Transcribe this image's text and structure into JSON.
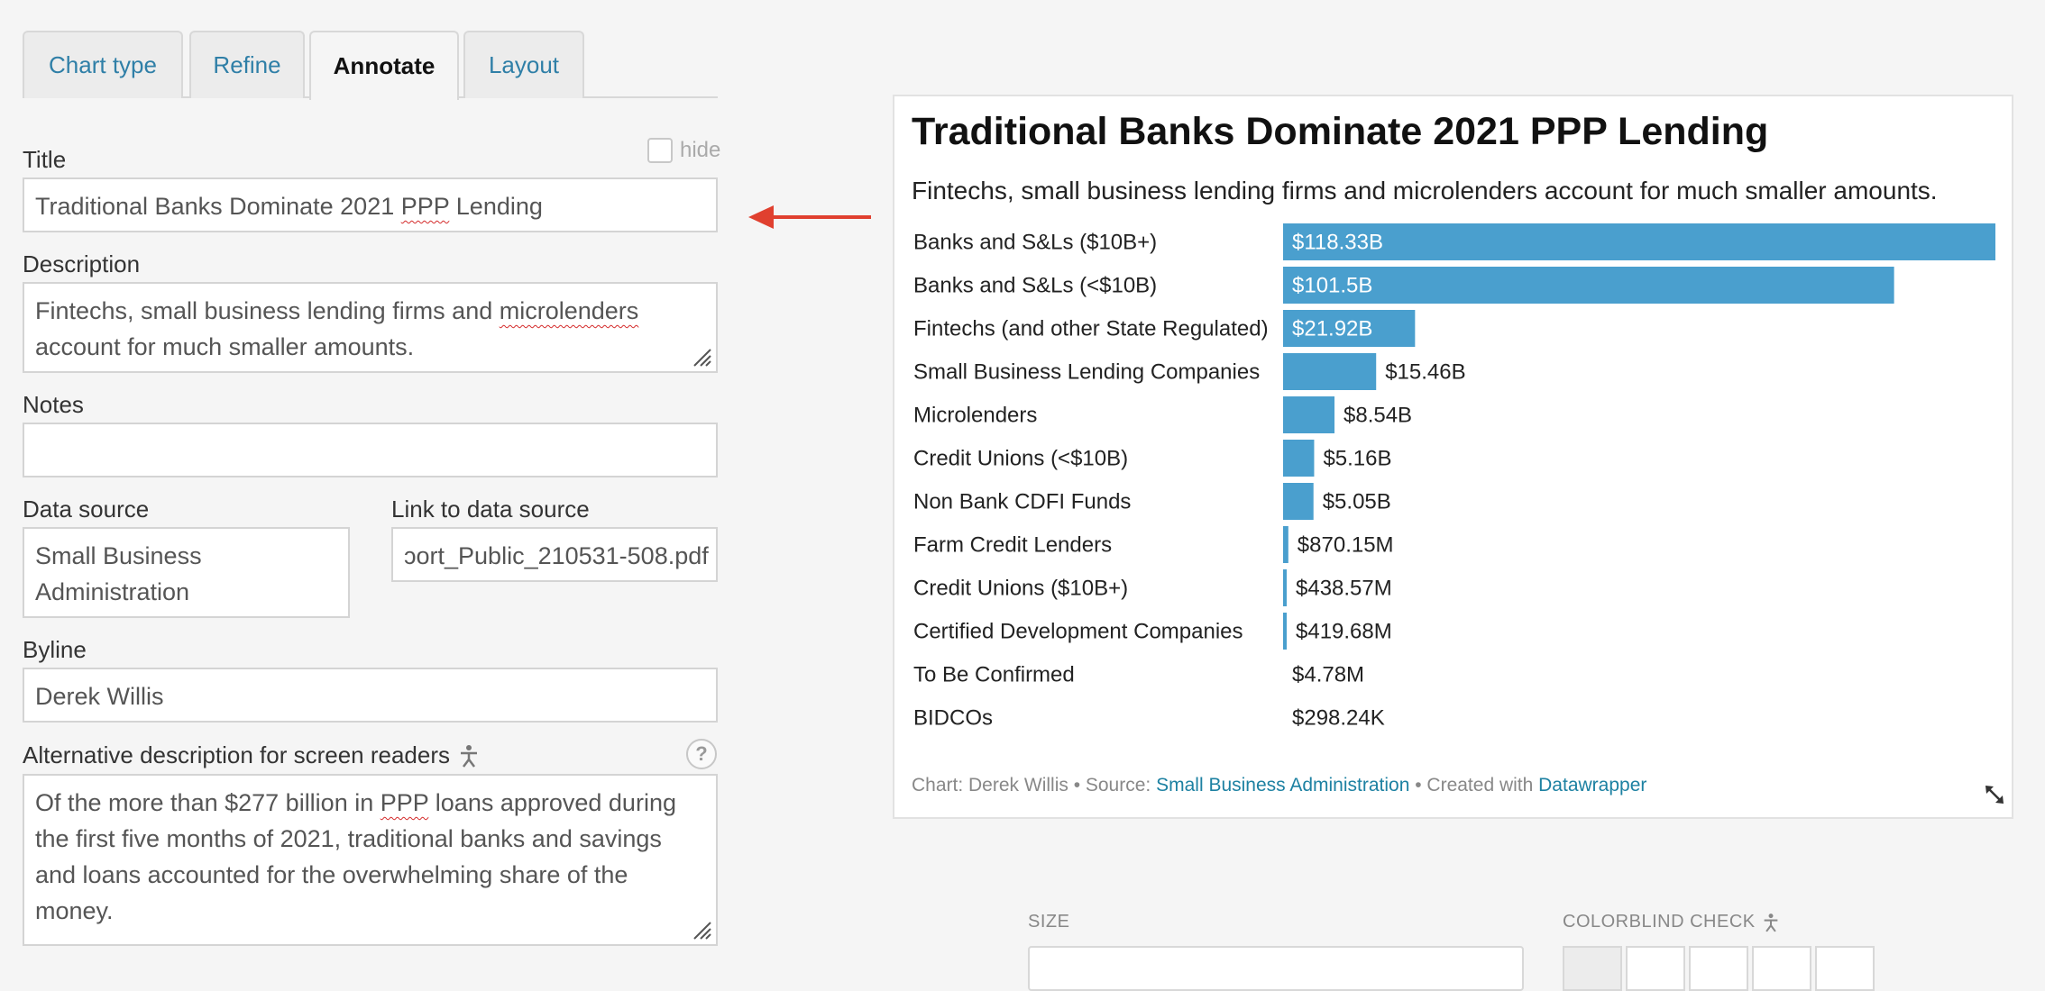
{
  "tabs": [
    {
      "label": "Chart type"
    },
    {
      "label": "Refine"
    },
    {
      "label": "Annotate"
    },
    {
      "label": "Layout"
    }
  ],
  "form": {
    "title_label": "Title",
    "hide_label": "hide",
    "title_value": "Traditional Banks Dominate 2021 PPP Lending",
    "description_label": "Description",
    "description_value": "Fintechs, small business lending firms and microlenders account for much smaller amounts.",
    "notes_label": "Notes",
    "notes_value": "",
    "data_source_label": "Data source",
    "data_source_value": "Small Business Administration",
    "link_label": "Link to data source",
    "link_value": "ɔort_Public_210531-508.pdf",
    "byline_label": "Byline",
    "byline_value": "Derek Willis",
    "alt_label": "Alternative description for screen readers",
    "alt_value": "Of the more than $277 billion in PPP loans approved during the first five months of 2021, traditional banks and savings and loans accounted for the overwhelming share of the money.",
    "help_icon": "?"
  },
  "chart": {
    "title": "Traditional Banks Dominate 2021 PPP Lending",
    "description": "Fintechs, small business lending firms and microlenders account for much smaller amounts.",
    "footer": {
      "prefix": "Chart: Derek Willis • Source: ",
      "source_link": "Small Business Administration",
      "middle": " • Created with ",
      "tool_link": "Datawrapper"
    },
    "bar_color": "#4a9fce"
  },
  "chart_data": {
    "type": "bar",
    "orientation": "horizontal",
    "title": "Traditional Banks Dominate 2021 PPP Lending",
    "subtitle": "Fintechs, small business lending firms and microlenders account for much smaller amounts.",
    "categories": [
      "Banks and S&Ls ($10B+)",
      "Banks and S&Ls (<$10B)",
      "Fintechs (and other State Regulated)",
      "Small Business Lending Companies",
      "Microlenders",
      "Credit Unions (<$10B)",
      "Non Bank CDFI Funds",
      "Farm Credit Lenders",
      "Credit Unions ($10B+)",
      "Certified Development Companies",
      "To Be Confirmed",
      "BIDCOs"
    ],
    "values": [
      118.33,
      101.5,
      21.92,
      15.46,
      8.54,
      5.16,
      5.05,
      0.87015,
      0.43857,
      0.41968,
      0.00478,
      0.000298
    ],
    "labels": [
      "$118.33B",
      "$101.5B",
      "$21.92B",
      "$15.46B",
      "$8.54B",
      "$5.16B",
      "$5.05B",
      "$870.15M",
      "$438.57M",
      "$419.68M",
      "$4.78M",
      "$298.24K"
    ],
    "unit": "billions USD",
    "xlim": [
      0,
      118.33
    ]
  },
  "controls": {
    "size_label": "SIZE",
    "colorblind_label": "COLORBLIND CHECK"
  }
}
